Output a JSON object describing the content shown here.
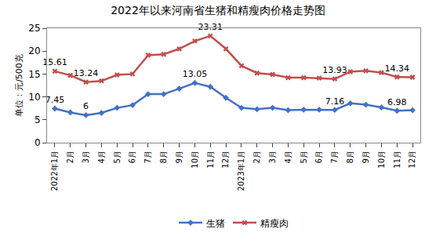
{
  "chart_data": {
    "type": "line",
    "title": "2022年以来河南省生猪和精瘦肉价格走势图",
    "y_label": "单位：元/500克",
    "categories": [
      "2022年1月",
      "2月",
      "3月",
      "4月",
      "5月",
      "6月",
      "7月",
      "8月",
      "9月",
      "10月",
      "11月",
      "12月",
      "2023年1月",
      "2月",
      "3月",
      "4月",
      "5月",
      "6月",
      "7月",
      "8月",
      "9月",
      "10月",
      "11月",
      "12月"
    ],
    "series": [
      {
        "name": "生猪",
        "color": "#4472c4",
        "marker": "diamond",
        "values": [
          7.45,
          6.6,
          6,
          6.5,
          7.6,
          8.2,
          10.6,
          10.6,
          11.8,
          13.05,
          12.2,
          9.8,
          7.6,
          7.3,
          7.6,
          7.1,
          7.2,
          7.2,
          7.16,
          8.6,
          8.3,
          7.7,
          6.98,
          7.1
        ],
        "value_labels": [
          "7.45",
          null,
          "6",
          null,
          null,
          null,
          null,
          null,
          null,
          "13.05",
          null,
          null,
          null,
          null,
          null,
          null,
          null,
          null,
          "7.16",
          null,
          null,
          null,
          "6.98",
          null
        ]
      },
      {
        "name": "精瘦肉",
        "color": "#c0504d",
        "marker": "x",
        "values": [
          15.61,
          14.7,
          13.24,
          13.5,
          14.8,
          15,
          19.1,
          19.3,
          20.5,
          22.2,
          23.31,
          20.5,
          16.8,
          15.2,
          14.9,
          14.2,
          14.2,
          14.1,
          13.93,
          15.5,
          15.7,
          15.3,
          14.34,
          14.3
        ],
        "value_labels": [
          "15.61",
          null,
          "13.24",
          null,
          null,
          null,
          null,
          null,
          null,
          null,
          "23.31",
          null,
          null,
          null,
          null,
          null,
          null,
          null,
          "13.93",
          null,
          null,
          null,
          "14.34",
          null
        ]
      }
    ],
    "ylim": [
      0,
      25
    ],
    "yticks": [
      0,
      5,
      10,
      15,
      20,
      25
    ],
    "grid": false,
    "legend": "bottom"
  }
}
